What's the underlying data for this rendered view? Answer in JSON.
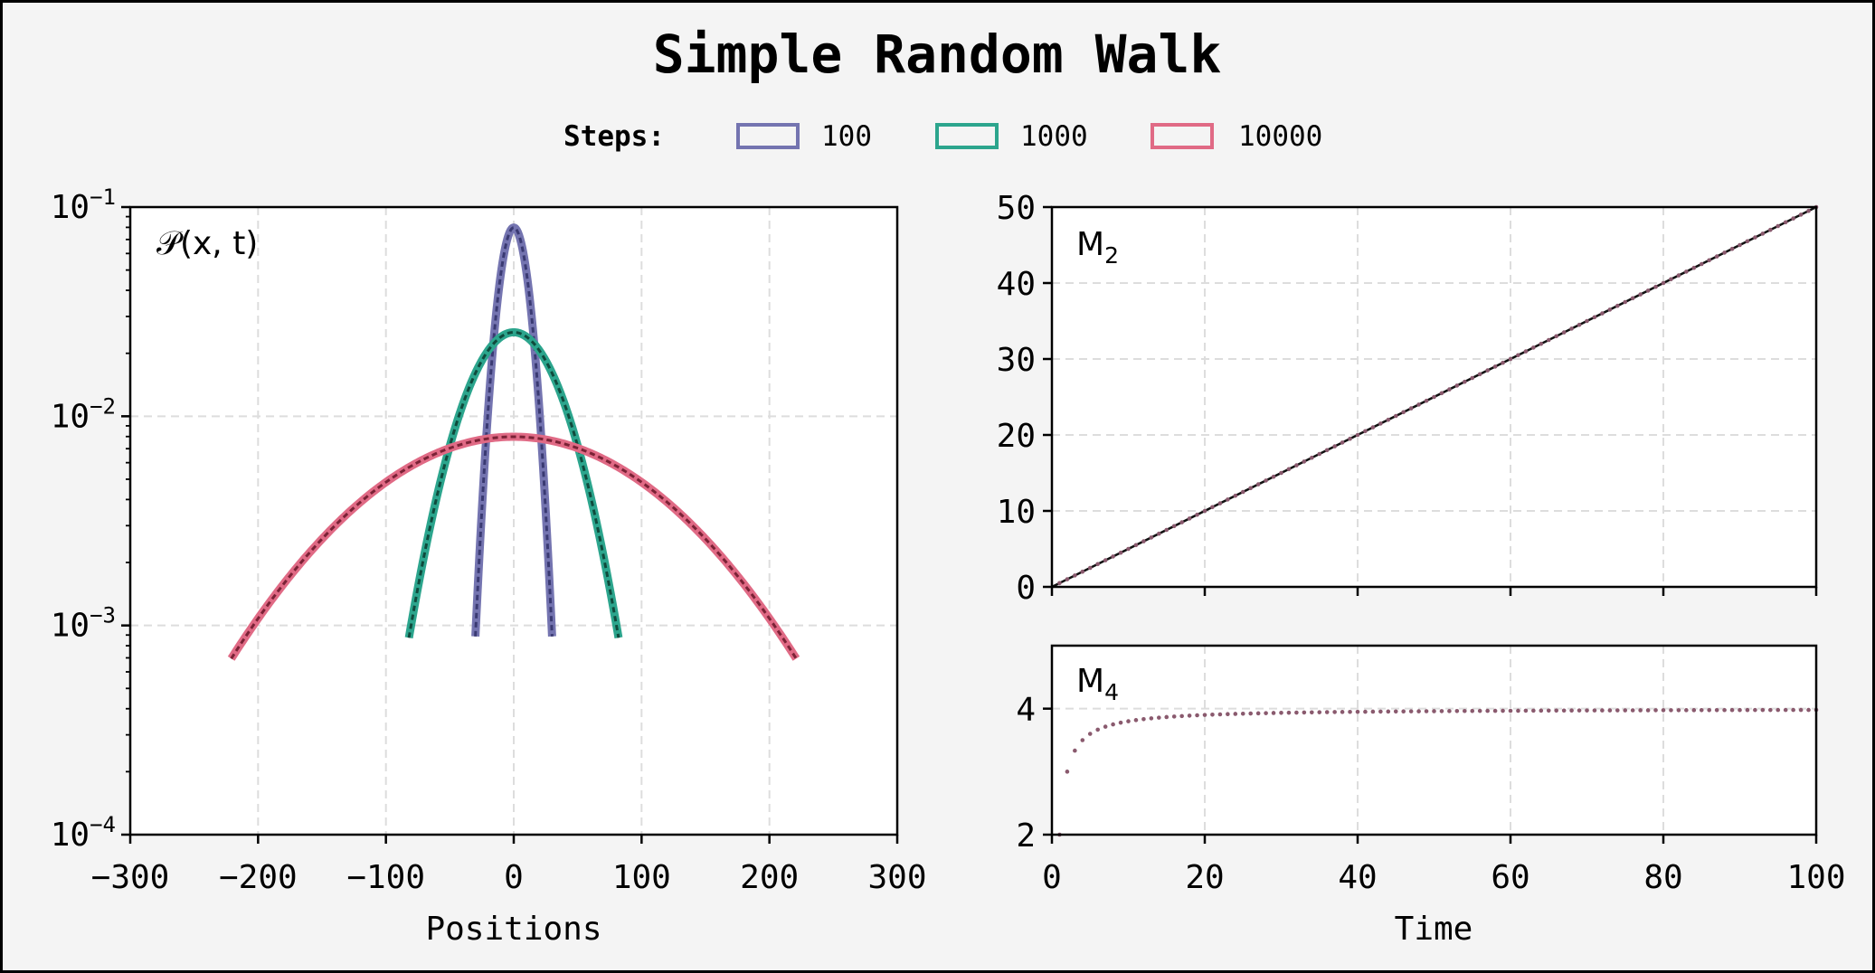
{
  "chart_data": {
    "title": "Simple Random Walk",
    "legend": {
      "title": "Steps:",
      "placement": "top-center",
      "entries": [
        {
          "label": "100",
          "color": "#7474b0"
        },
        {
          "label": "1000",
          "color": "#2ca58d"
        },
        {
          "label": "10000",
          "color": "#e06a85"
        }
      ]
    },
    "panels": [
      {
        "id": "distribution",
        "type": "line",
        "label": "𝒫(x, t)",
        "xlabel": "Positions",
        "xlim": [
          -300,
          300
        ],
        "xticks": [
          -300,
          -200,
          -100,
          0,
          100,
          200,
          300
        ],
        "xtick_labels": [
          "−300",
          "−200",
          "−100",
          "0",
          "100",
          "200",
          "300"
        ],
        "yscale": "log",
        "ylim": [
          0.0001,
          0.1
        ],
        "yticks": [
          {
            "base": "10",
            "exp": "−4",
            "value": 0.0001
          },
          {
            "base": "10",
            "exp": "−3",
            "value": 0.001
          },
          {
            "base": "10",
            "exp": "−2",
            "value": 0.01
          },
          {
            "base": "10",
            "exp": "−1",
            "value": 0.1
          }
        ],
        "grid": true,
        "series": [
          {
            "name": "100",
            "color": "#7474b0",
            "dark": "#3a3a72",
            "peak": 0.0798,
            "variance": 100,
            "x_range": [
              -30,
              30
            ]
          },
          {
            "name": "1000",
            "color": "#2ca58d",
            "dark": "#0f4a3c",
            "peak": 0.0252,
            "variance": 1000,
            "x_range": [
              -82,
              82
            ]
          },
          {
            "name": "10000",
            "color": "#e06a85",
            "dark": "#7a2236",
            "peak": 0.00798,
            "variance": 10000,
            "x_range": [
              -221,
              221
            ]
          }
        ]
      },
      {
        "id": "m2",
        "type": "scatter",
        "label": "M",
        "label_sub": "2",
        "xlim": [
          0,
          100
        ],
        "xticks": [
          0,
          20,
          40,
          60,
          80,
          100
        ],
        "ylim": [
          0,
          50
        ],
        "yticks": [
          0,
          10,
          20,
          30,
          40,
          50
        ],
        "grid": true,
        "reference_line": {
          "from": [
            0,
            0
          ],
          "to": [
            100,
            50
          ],
          "color": "#111111"
        },
        "points": {
          "x_start": 1,
          "x_end": 100,
          "x_step": 1,
          "slope": 0.5,
          "color": "#8a5a6e"
        }
      },
      {
        "id": "m4",
        "type": "scatter",
        "label": "M",
        "label_sub": "4",
        "xlabel": "Time",
        "xlim": [
          0,
          100
        ],
        "xticks": [
          0,
          20,
          40,
          60,
          80,
          100
        ],
        "xtick_labels": [
          "0",
          "20",
          "40",
          "60",
          "80",
          "100"
        ],
        "ylim": [
          2,
          5
        ],
        "yticks": [
          2,
          4
        ],
        "grid": true,
        "points": {
          "x_start": 1,
          "x_end": 100,
          "x_step": 1,
          "limit": 4,
          "color": "#8a5a6e"
        }
      }
    ]
  }
}
